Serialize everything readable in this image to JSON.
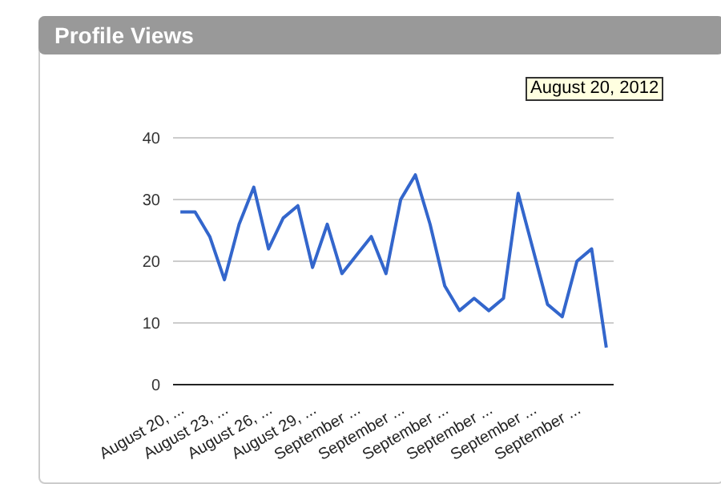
{
  "chart_data": {
    "type": "line",
    "title": "Profile Views",
    "categories": [
      "August 20, ...",
      null,
      null,
      "August 23, ...",
      null,
      null,
      "August 26, ...",
      null,
      null,
      "August 29, ...",
      null,
      null,
      "September ...",
      null,
      null,
      "September ...",
      null,
      null,
      "September ...",
      null,
      null,
      "September ...",
      null,
      null,
      "September ...",
      null,
      null,
      "September ...",
      null,
      null
    ],
    "series": [
      {
        "color": "#3366cc",
        "values": [
          28,
          28,
          24,
          17,
          26,
          32,
          22,
          27,
          29,
          19,
          26,
          18,
          21,
          24,
          18,
          30,
          34,
          26,
          16,
          12,
          14,
          12,
          14,
          31,
          22,
          13,
          11,
          20,
          22,
          6
        ]
      }
    ],
    "ylim": [
      0,
      40
    ],
    "yticks": [
      0,
      10,
      20,
      30,
      40
    ],
    "grid": "y",
    "marker": "none",
    "annotations": [
      "August 20, 2012"
    ]
  }
}
